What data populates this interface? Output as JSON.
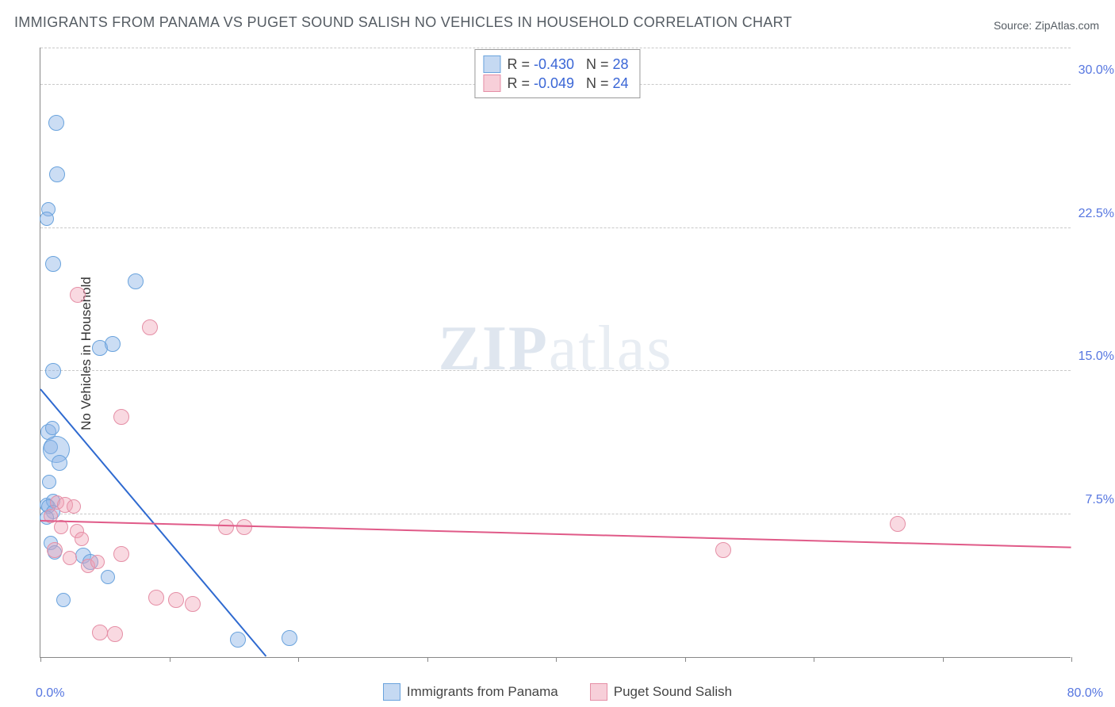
{
  "title": "IMMIGRANTS FROM PANAMA VS PUGET SOUND SALISH NO VEHICLES IN HOUSEHOLD CORRELATION CHART",
  "source": "Source: ZipAtlas.com",
  "ylabel": "No Vehicles in Household",
  "watermark_a": "ZIP",
  "watermark_b": "atlas",
  "chart": {
    "type": "scatter",
    "xlim": [
      0,
      80
    ],
    "ylim": [
      0,
      32
    ],
    "xticks": [
      0,
      10,
      20,
      30,
      40,
      50,
      60,
      70,
      80
    ],
    "yticks_major": [
      7.5,
      15.0,
      22.5,
      30.0
    ],
    "ytick_labels": [
      "7.5%",
      "15.0%",
      "22.5%",
      "30.0%"
    ],
    "xmin_label": "0.0%",
    "xmax_label": "80.0%",
    "grid_color": "#c9c9c9",
    "background_color": "#ffffff",
    "axis_color": "#888888",
    "tick_label_color": "#5676e0",
    "point_radius_default": 9,
    "colors": {
      "blue_fill": "rgba(140,180,230,0.45)",
      "blue_stroke": "#6aa3dd",
      "blue_line": "#2f6ad0",
      "pink_fill": "rgba(240,160,180,0.40)",
      "pink_stroke": "#e58fa6",
      "pink_line": "#e05a88"
    },
    "series": [
      {
        "name": "Immigrants from Panama",
        "color": "blue",
        "R": "-0.430",
        "N": "28",
        "trend": {
          "x1": 0,
          "y1": 14.0,
          "x2": 17.5,
          "y2": 0.0
        },
        "points": [
          {
            "x": 1.2,
            "y": 28.0,
            "r": 9
          },
          {
            "x": 1.3,
            "y": 25.3,
            "r": 9
          },
          {
            "x": 0.6,
            "y": 23.5,
            "r": 8
          },
          {
            "x": 0.5,
            "y": 23.0,
            "r": 8
          },
          {
            "x": 1.0,
            "y": 20.6,
            "r": 9
          },
          {
            "x": 7.4,
            "y": 19.7,
            "r": 9
          },
          {
            "x": 4.6,
            "y": 16.2,
            "r": 9
          },
          {
            "x": 5.6,
            "y": 16.4,
            "r": 9
          },
          {
            "x": 1.0,
            "y": 15.0,
            "r": 9
          },
          {
            "x": 0.6,
            "y": 11.8,
            "r": 9
          },
          {
            "x": 0.8,
            "y": 11.0,
            "r": 8
          },
          {
            "x": 1.2,
            "y": 10.9,
            "r": 16
          },
          {
            "x": 1.5,
            "y": 10.2,
            "r": 9
          },
          {
            "x": 0.7,
            "y": 9.2,
            "r": 8
          },
          {
            "x": 0.5,
            "y": 8.0,
            "r": 8
          },
          {
            "x": 1.0,
            "y": 8.2,
            "r": 8
          },
          {
            "x": 0.6,
            "y": 7.9,
            "r": 8
          },
          {
            "x": 1.0,
            "y": 7.6,
            "r": 8
          },
          {
            "x": 0.8,
            "y": 6.0,
            "r": 8
          },
          {
            "x": 1.1,
            "y": 5.5,
            "r": 8
          },
          {
            "x": 3.3,
            "y": 5.3,
            "r": 9
          },
          {
            "x": 3.9,
            "y": 5.0,
            "r": 9
          },
          {
            "x": 5.2,
            "y": 4.2,
            "r": 8
          },
          {
            "x": 1.8,
            "y": 3.0,
            "r": 8
          },
          {
            "x": 0.5,
            "y": 7.3,
            "r": 8
          },
          {
            "x": 15.3,
            "y": 0.9,
            "r": 9
          },
          {
            "x": 19.3,
            "y": 1.0,
            "r": 9
          },
          {
            "x": 0.9,
            "y": 12.0,
            "r": 8
          }
        ]
      },
      {
        "name": "Puget Sound Salish",
        "color": "pink",
        "R": "-0.049",
        "N": "24",
        "trend": {
          "x1": 0,
          "y1": 7.1,
          "x2": 80,
          "y2": 5.7
        },
        "points": [
          {
            "x": 2.9,
            "y": 19.0,
            "r": 9
          },
          {
            "x": 8.5,
            "y": 17.3,
            "r": 9
          },
          {
            "x": 6.3,
            "y": 12.6,
            "r": 9
          },
          {
            "x": 1.3,
            "y": 8.1,
            "r": 8
          },
          {
            "x": 1.9,
            "y": 8.0,
            "r": 9
          },
          {
            "x": 2.6,
            "y": 7.9,
            "r": 8
          },
          {
            "x": 0.8,
            "y": 7.4,
            "r": 8
          },
          {
            "x": 1.6,
            "y": 6.8,
            "r": 8
          },
          {
            "x": 2.8,
            "y": 6.6,
            "r": 8
          },
          {
            "x": 3.2,
            "y": 6.2,
            "r": 8
          },
          {
            "x": 1.1,
            "y": 5.6,
            "r": 9
          },
          {
            "x": 2.3,
            "y": 5.2,
            "r": 8
          },
          {
            "x": 3.7,
            "y": 4.8,
            "r": 8
          },
          {
            "x": 4.4,
            "y": 5.0,
            "r": 8
          },
          {
            "x": 6.3,
            "y": 5.4,
            "r": 9
          },
          {
            "x": 14.4,
            "y": 6.8,
            "r": 9
          },
          {
            "x": 15.8,
            "y": 6.8,
            "r": 9
          },
          {
            "x": 9.0,
            "y": 3.1,
            "r": 9
          },
          {
            "x": 10.5,
            "y": 3.0,
            "r": 9
          },
          {
            "x": 11.8,
            "y": 2.8,
            "r": 9
          },
          {
            "x": 4.6,
            "y": 1.3,
            "r": 9
          },
          {
            "x": 5.8,
            "y": 1.2,
            "r": 9
          },
          {
            "x": 53.0,
            "y": 5.6,
            "r": 9
          },
          {
            "x": 66.5,
            "y": 7.0,
            "r": 9
          }
        ]
      }
    ]
  },
  "legend_top": {
    "label_R": "R =",
    "label_N": "N ="
  },
  "legend_bottom": [
    {
      "color": "blue",
      "label": "Immigrants from Panama"
    },
    {
      "color": "pink",
      "label": "Puget Sound Salish"
    }
  ]
}
